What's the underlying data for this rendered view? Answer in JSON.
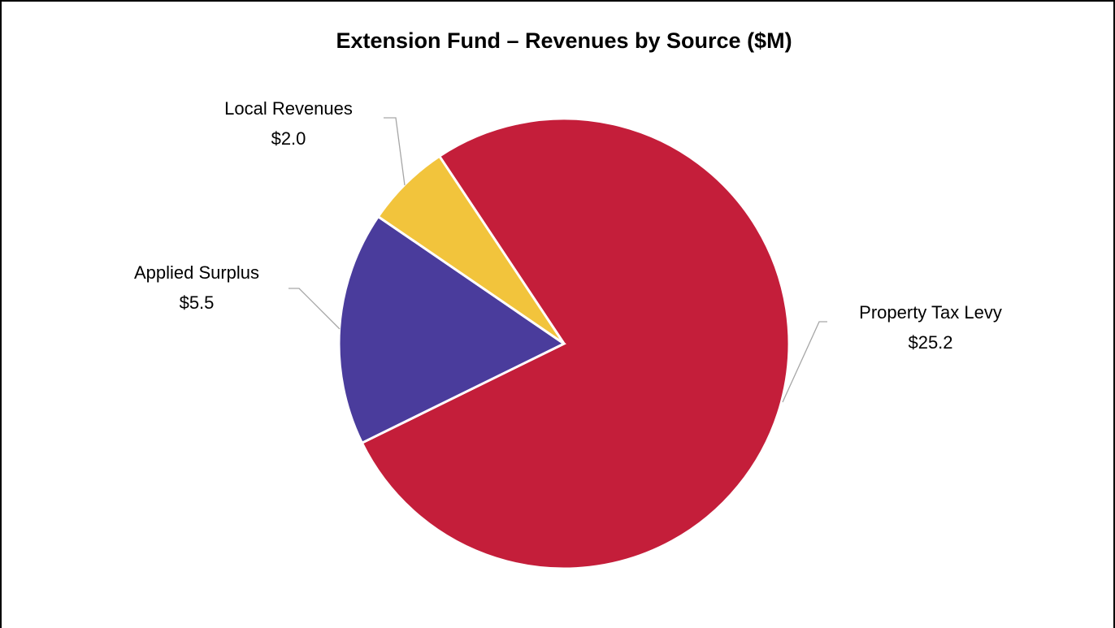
{
  "chart_data": {
    "type": "pie",
    "title": "Extension Fund – Revenues by Source ($M)",
    "categories": [
      "Property Tax Levy",
      "Applied Surplus",
      "Local Revenues"
    ],
    "values": [
      25.2,
      5.5,
      2.0
    ],
    "value_labels": [
      "$25.2",
      "$5.5",
      "$2.0"
    ],
    "colors": [
      "#c41e3a",
      "#4a3c9c",
      "#f2c43c"
    ]
  }
}
